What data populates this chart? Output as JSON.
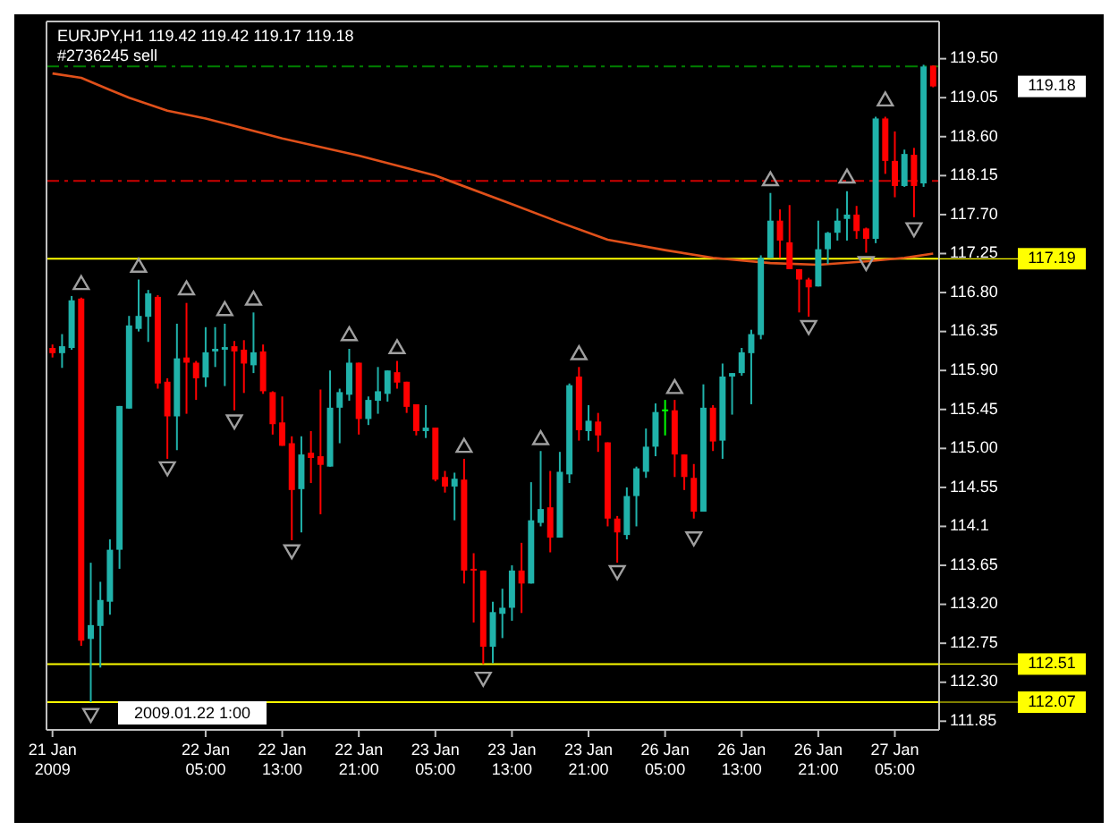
{
  "chart_data": {
    "type": "candlestick",
    "title": "EURJPY,H1  119.42 119.42 119.17 119.18",
    "categories": [
      "21 Jan 2009",
      null,
      null,
      null,
      null,
      null,
      null,
      null,
      null,
      null,
      null,
      null,
      null,
      null,
      null,
      null,
      "22 Jan 05:00",
      null,
      null,
      null,
      null,
      null,
      null,
      null,
      "22 Jan 13:00",
      null,
      null,
      null,
      null,
      null,
      null,
      null,
      "22 Jan 21:00",
      null,
      null,
      null,
      null,
      null,
      null,
      null,
      "23 Jan 05:00",
      null,
      null,
      null,
      null,
      null,
      null,
      null,
      "23 Jan 13:00",
      null,
      null,
      null,
      null,
      null,
      null,
      null,
      "23 Jan 21:00",
      null,
      null,
      null,
      null,
      null,
      null,
      null,
      "26 Jan 05:00",
      null,
      null,
      null,
      null,
      null,
      null,
      null,
      "26 Jan 13:00",
      null,
      null,
      null,
      null,
      null,
      null,
      null,
      "26 Jan 21:00",
      null,
      null,
      null,
      null,
      null,
      null,
      null,
      "27 Jan 05:00",
      null,
      null,
      null,
      null
    ],
    "ohlc": [
      [
        116.16,
        116.2,
        116.05,
        116.1
      ],
      [
        116.1,
        116.32,
        115.93,
        116.18
      ],
      [
        116.16,
        116.76,
        116.14,
        116.71
      ],
      [
        116.73,
        116.74,
        112.72,
        112.78
      ],
      [
        112.8,
        113.68,
        112.07,
        112.96
      ],
      [
        112.95,
        113.46,
        112.47,
        113.25
      ],
      [
        113.23,
        113.95,
        113.08,
        113.83
      ],
      [
        113.83,
        115.49,
        113.61,
        115.49
      ],
      [
        115.46,
        116.53,
        115.46,
        116.42
      ],
      [
        116.38,
        116.95,
        116.35,
        116.53
      ],
      [
        116.52,
        116.83,
        116.23,
        116.79
      ],
      [
        116.75,
        116.77,
        115.69,
        115.75
      ],
      [
        115.77,
        115.81,
        114.88,
        115.37
      ],
      [
        115.37,
        116.44,
        114.98,
        116.04
      ],
      [
        116.05,
        116.68,
        115.4,
        115.99
      ],
      [
        115.99,
        116.01,
        115.56,
        115.81
      ],
      [
        115.82,
        116.4,
        115.71,
        116.11
      ],
      [
        116.12,
        116.4,
        115.94,
        116.15
      ],
      [
        116.14,
        116.44,
        115.72,
        116.17
      ],
      [
        116.18,
        116.24,
        115.44,
        116.12
      ],
      [
        116.14,
        116.25,
        115.64,
        115.98
      ],
      [
        115.96,
        116.57,
        115.87,
        116.11
      ],
      [
        116.12,
        116.2,
        115.63,
        115.66
      ],
      [
        115.65,
        115.66,
        115.16,
        115.28
      ],
      [
        115.3,
        115.6,
        115.03,
        115.03
      ],
      [
        115.06,
        115.14,
        113.94,
        114.52
      ],
      [
        114.53,
        115.14,
        114.03,
        114.93
      ],
      [
        114.95,
        115.2,
        114.6,
        114.89
      ],
      [
        114.91,
        115.68,
        114.24,
        114.81
      ],
      [
        114.79,
        115.9,
        114.79,
        115.47
      ],
      [
        115.47,
        115.69,
        115.06,
        115.65
      ],
      [
        115.62,
        116.15,
        115.55,
        115.99
      ],
      [
        115.99,
        115.99,
        115.16,
        115.34
      ],
      [
        115.34,
        115.6,
        115.27,
        115.56
      ],
      [
        115.55,
        115.94,
        115.4,
        115.66
      ],
      [
        115.63,
        115.9,
        115.54,
        115.9
      ],
      [
        115.88,
        116.01,
        115.69,
        115.76
      ],
      [
        115.77,
        115.77,
        115.41,
        115.48
      ],
      [
        115.51,
        115.51,
        115.15,
        115.2
      ],
      [
        115.2,
        115.5,
        115.12,
        115.24
      ],
      [
        115.24,
        115.24,
        114.62,
        114.64
      ],
      [
        114.67,
        114.74,
        114.49,
        114.56
      ],
      [
        114.56,
        114.72,
        114.17,
        114.65
      ],
      [
        114.64,
        114.88,
        113.44,
        113.59
      ],
      [
        113.61,
        113.79,
        112.99,
        113.59
      ],
      [
        113.59,
        113.59,
        112.51,
        112.71
      ],
      [
        112.71,
        113.23,
        112.52,
        113.11
      ],
      [
        113.09,
        113.38,
        112.81,
        113.16
      ],
      [
        113.16,
        113.65,
        113.01,
        113.59
      ],
      [
        113.59,
        113.91,
        113.1,
        113.44
      ],
      [
        113.44,
        114.61,
        113.44,
        114.17
      ],
      [
        114.14,
        114.97,
        114.1,
        114.3
      ],
      [
        114.32,
        114.74,
        113.8,
        113.97
      ],
      [
        113.97,
        114.96,
        113.97,
        114.73
      ],
      [
        114.7,
        115.75,
        114.6,
        115.73
      ],
      [
        115.83,
        115.94,
        115.09,
        115.21
      ],
      [
        115.2,
        115.5,
        115.09,
        115.32
      ],
      [
        115.31,
        115.41,
        114.96,
        115.15
      ],
      [
        115.07,
        115.07,
        114.1,
        114.19
      ],
      [
        114.19,
        114.22,
        113.68,
        114.03
      ],
      [
        114.0,
        114.55,
        113.95,
        114.45
      ],
      [
        114.45,
        114.79,
        114.1,
        114.77
      ],
      [
        114.73,
        115.23,
        114.66,
        115.02
      ],
      [
        115.02,
        115.52,
        114.91,
        115.42
      ],
      [
        115.45,
        115.56,
        115.15,
        115.45
      ],
      [
        115.44,
        115.56,
        114.67,
        114.93
      ],
      [
        114.93,
        114.93,
        114.52,
        114.67
      ],
      [
        114.66,
        114.82,
        114.19,
        114.27
      ],
      [
        114.27,
        115.74,
        114.27,
        115.47
      ],
      [
        115.47,
        115.5,
        114.97,
        115.08
      ],
      [
        115.09,
        115.98,
        114.88,
        115.83
      ],
      [
        115.83,
        115.87,
        115.39,
        115.87
      ],
      [
        115.87,
        116.16,
        115.84,
        116.11
      ],
      [
        116.1,
        116.37,
        115.51,
        116.32
      ],
      [
        116.31,
        117.23,
        116.26,
        117.2
      ],
      [
        117.2,
        117.95,
        117.2,
        117.63
      ],
      [
        117.63,
        117.76,
        117.2,
        117.4
      ],
      [
        117.38,
        117.81,
        117.07,
        117.07
      ],
      [
        117.07,
        117.07,
        116.57,
        116.95
      ],
      [
        116.95,
        116.97,
        116.52,
        116.86
      ],
      [
        116.87,
        117.63,
        116.87,
        117.3
      ],
      [
        117.3,
        117.5,
        117.13,
        117.49
      ],
      [
        117.49,
        117.77,
        117.4,
        117.63
      ],
      [
        117.65,
        117.97,
        117.4,
        117.7
      ],
      [
        117.7,
        117.8,
        117.42,
        117.51
      ],
      [
        117.54,
        117.55,
        117.26,
        117.42
      ],
      [
        117.42,
        118.83,
        117.37,
        118.81
      ],
      [
        118.81,
        118.83,
        118.17,
        118.32
      ],
      [
        118.32,
        118.66,
        117.9,
        118.03
      ],
      [
        118.03,
        118.45,
        118.02,
        118.4
      ],
      [
        118.39,
        118.47,
        117.67,
        118.03
      ],
      [
        118.06,
        119.43,
        118.02,
        119.41
      ],
      [
        119.42,
        119.42,
        119.17,
        119.18
      ]
    ],
    "colors": [
      "#ff0000",
      "#20b2aa",
      "#20b2aa",
      "#ff0000",
      "#20b2aa",
      "#20b2aa",
      "#20b2aa",
      "#20b2aa",
      "#20b2aa",
      "#20b2aa",
      "#20b2aa",
      "#ff0000",
      "#ff0000",
      "#20b2aa",
      "#ff0000",
      "#ff0000",
      "#20b2aa",
      "#20b2aa",
      "#20b2aa",
      "#ff0000",
      "#ff0000",
      "#20b2aa",
      "#ff0000",
      "#ff0000",
      "#ff0000",
      "#ff0000",
      "#20b2aa",
      "#ff0000",
      "#ff0000",
      "#20b2aa",
      "#20b2aa",
      "#20b2aa",
      "#ff0000",
      "#20b2aa",
      "#20b2aa",
      "#20b2aa",
      "#ff0000",
      "#ff0000",
      "#ff0000",
      "#20b2aa",
      "#ff0000",
      "#ff0000",
      "#20b2aa",
      "#ff0000",
      "#ff0000",
      "#ff0000",
      "#20b2aa",
      "#20b2aa",
      "#20b2aa",
      "#ff0000",
      "#20b2aa",
      "#20b2aa",
      "#ff0000",
      "#20b2aa",
      "#20b2aa",
      "#ff0000",
      "#20b2aa",
      "#ff0000",
      "#ff0000",
      "#ff0000",
      "#20b2aa",
      "#20b2aa",
      "#20b2aa",
      "#20b2aa",
      "#00ff00",
      "#ff0000",
      "#ff0000",
      "#ff0000",
      "#20b2aa",
      "#ff0000",
      "#20b2aa",
      "#20b2aa",
      "#20b2aa",
      "#20b2aa",
      "#20b2aa",
      "#20b2aa",
      "#ff0000",
      "#ff0000",
      "#ff0000",
      "#ff0000",
      "#20b2aa",
      "#20b2aa",
      "#20b2aa",
      "#20b2aa",
      "#ff0000",
      "#ff0000",
      "#20b2aa",
      "#ff0000",
      "#ff0000",
      "#20b2aa",
      "#ff0000",
      "#20b2aa",
      "#ff0000"
    ],
    "series": [
      {
        "type": "line",
        "color": "#e0501a",
        "values": [
          119.33,
          null,
          null,
          119.28,
          null,
          null,
          119.14,
          null,
          119.05,
          null,
          null,
          null,
          118.9,
          null,
          null,
          null,
          118.81,
          null,
          null,
          null,
          null,
          null,
          null,
          null,
          118.58,
          null,
          null,
          null,
          null,
          null,
          null,
          null,
          118.38,
          null,
          null,
          null,
          null,
          null,
          null,
          null,
          118.15,
          null,
          null,
          null,
          null,
          null,
          null,
          null,
          117.82,
          null,
          null,
          null,
          null,
          117.61,
          null,
          null,
          null,
          null,
          117.41,
          null,
          null,
          null,
          null,
          null,
          117.29,
          null,
          null,
          null,
          null,
          117.2,
          null,
          null,
          null,
          null,
          null,
          117.14,
          null,
          null,
          null,
          null,
          117.12,
          null,
          null,
          null,
          null,
          117.16,
          null,
          null,
          null,
          117.2,
          null,
          null,
          117.25
        ]
      },
      {
        "type": "scatter",
        "marker": "triangle",
        "color": "#a0a0a0",
        "values": [
          null,
          null,
          null,
          116.89,
          null,
          null,
          null,
          null,
          null,
          117.09,
          null,
          null,
          null,
          null,
          116.83,
          null,
          null,
          null,
          116.59,
          null,
          null,
          116.71,
          null,
          null,
          null,
          null,
          null,
          null,
          null,
          null,
          null,
          116.3,
          null,
          null,
          null,
          null,
          116.15,
          null,
          null,
          null,
          null,
          null,
          null,
          115.01,
          null,
          null,
          null,
          null,
          null,
          null,
          null,
          115.1,
          null,
          null,
          null,
          116.08,
          null,
          null,
          null,
          null,
          null,
          null,
          null,
          null,
          null,
          115.69,
          null,
          null,
          null,
          null,
          null,
          null,
          null,
          null,
          null,
          118.09,
          null,
          null,
          null,
          null,
          null,
          null,
          null,
          118.12,
          null,
          null,
          null,
          119.01,
          null,
          null,
          null,
          null,
          null
        ]
      },
      {
        "type": "scatter",
        "marker": "triangle",
        "color": "#a0a0a0",
        "values": [
          null,
          null,
          null,
          null,
          111.94,
          null,
          null,
          null,
          null,
          null,
          null,
          null,
          114.79,
          null,
          null,
          null,
          null,
          null,
          null,
          115.33,
          null,
          null,
          null,
          null,
          null,
          113.83,
          null,
          null,
          null,
          null,
          null,
          null,
          null,
          null,
          null,
          null,
          null,
          null,
          null,
          null,
          null,
          null,
          null,
          null,
          null,
          112.36,
          null,
          null,
          null,
          null,
          null,
          null,
          null,
          null,
          null,
          null,
          null,
          null,
          null,
          113.59,
          null,
          null,
          null,
          null,
          null,
          null,
          null,
          113.98,
          null,
          null,
          null,
          null,
          null,
          null,
          null,
          null,
          null,
          null,
          null,
          116.42,
          null,
          null,
          null,
          null,
          null,
          117.16,
          null,
          null,
          null,
          null,
          117.55,
          null,
          null
        ]
      }
    ],
    "ylim": [
      111.75,
      119.93
    ],
    "yticks": [
      111.85,
      {
        "value": 112.3,
        "label": "112.30"
      },
      112.75,
      {
        "value": 113.2,
        "label": "113.20"
      },
      113.65,
      114.1,
      114.55,
      {
        "value": 115,
        "label": "115.00"
      },
      115.45,
      {
        "value": 115.9,
        "label": "115.90"
      },
      116.35,
      {
        "value": 116.8,
        "label": "116.80"
      },
      117.25,
      {
        "value": 117.7,
        "label": "117.70"
      },
      118.15,
      {
        "value": 118.6,
        "label": "118.60"
      },
      119.05,
      {
        "value": 119.5,
        "label": "119.50"
      }
    ],
    "ref_lines": [
      {
        "axis": "y",
        "value": 119.41,
        "label": "#2736245 sell",
        "color": "#008000",
        "line_style": "dashed"
      },
      {
        "axis": "y",
        "value": 118.09,
        "color": "#cc0000",
        "line_style": "dashed"
      },
      {
        "axis": "y",
        "value": 117.19,
        "label": "117.19",
        "color": "#ffff00",
        "line_style": "solid"
      },
      {
        "axis": "y",
        "value": 112.51,
        "label": "112.51",
        "color": "#ffff00",
        "line_style": "solid"
      },
      {
        "axis": "y",
        "value": 112.07,
        "label": "112.07",
        "color": "#ffff00",
        "line_style": "solid"
      }
    ],
    "annotations": [
      "119.18",
      "2009.01.22 1:00"
    ]
  }
}
